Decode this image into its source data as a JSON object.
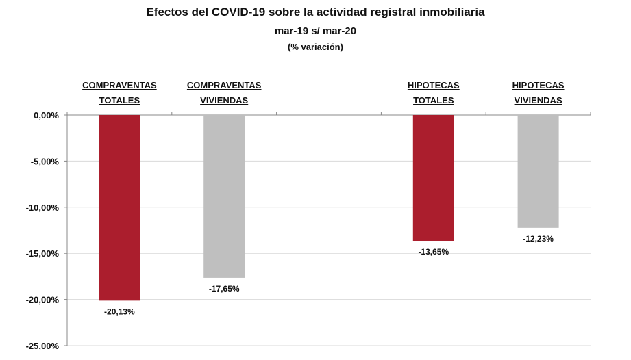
{
  "chart_data": {
    "type": "bar",
    "title": "Efectos del COVID-19 sobre la actividad registral inmobiliaria",
    "subtitle": "mar-19 s/ mar-20",
    "subtitle2": "(% variación)",
    "categories": [
      [
        "COMPRAVENTAS",
        "TOTALES"
      ],
      [
        "COMPRAVENTAS",
        "VIVIENDAS"
      ],
      [
        "",
        ""
      ],
      [
        "HIPOTECAS",
        "TOTALES"
      ],
      [
        "HIPOTECAS",
        "VIVIENDAS"
      ]
    ],
    "values": [
      -20.13,
      -17.65,
      null,
      -13.65,
      -12.23
    ],
    "data_labels": [
      "-20,13%",
      "-17,65%",
      "",
      "-13,65%",
      "-12,23%"
    ],
    "colors": [
      "#ab1e2d",
      "#bfbfbf",
      "",
      "#ab1e2d",
      "#bfbfbf"
    ],
    "ylim": [
      -25,
      0
    ],
    "yticks": [
      0,
      -5,
      -10,
      -15,
      -20,
      -25
    ],
    "ytick_labels": [
      "0,00%",
      "-5,00%",
      "-10,00%",
      "-15,00%",
      "-20,00%",
      "-25,00%"
    ],
    "grid": true,
    "xaxis_position": "top",
    "category_labels_position": "top"
  }
}
